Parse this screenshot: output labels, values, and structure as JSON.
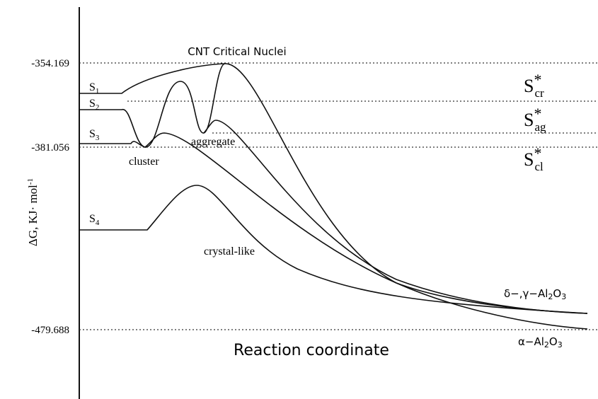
{
  "axis": {
    "ticks": [
      "-354.169",
      "-381.056",
      "-479.688"
    ],
    "label": {
      "main": "ΔG, KJ· mol",
      "sup": "-1"
    },
    "x_label": "Reaction coordinate"
  },
  "title": "CNT Critical Nuclei",
  "states": [
    {
      "main": "S",
      "sub": "1"
    },
    {
      "main": "S",
      "sub": "2"
    },
    {
      "main": "S",
      "sub": "3"
    },
    {
      "main": "S",
      "sub": "4"
    }
  ],
  "annotations": [
    "cluster",
    "aggregate",
    "crystal-like"
  ],
  "levels": [
    {
      "main": "S",
      "sup": "*",
      "sub": "cr"
    },
    {
      "main": "S",
      "sup": "*",
      "sub": "ag"
    },
    {
      "main": "S",
      "sup": "*",
      "sub": "cl"
    }
  ],
  "products": [
    {
      "a": "δ−,γ−Al",
      "b": "2",
      "c": "O",
      "d": "3"
    },
    {
      "a": "α−Al",
      "b": "2",
      "c": "O",
      "d": "3"
    }
  ]
}
